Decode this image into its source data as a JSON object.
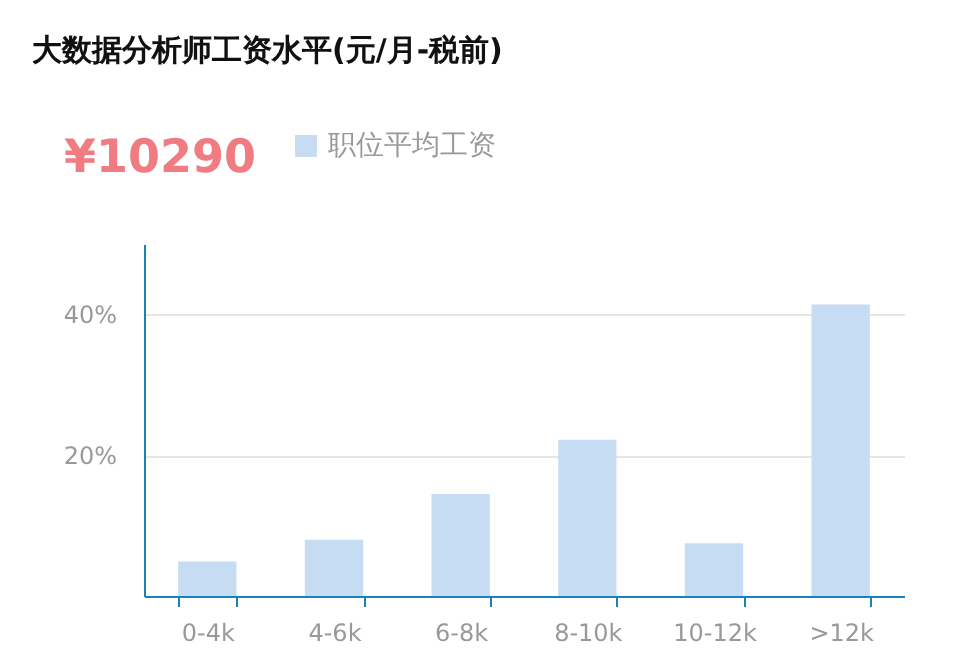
{
  "chart_data": {
    "type": "bar",
    "title": "大数据分析师工资水平(元/月-税前)",
    "annotations": [
      "¥10290"
    ],
    "categories": [
      "0-4k",
      "4-6k",
      "6-8k",
      "8-10k",
      "10-12k",
      ">12k"
    ],
    "series": [
      {
        "name": "职位平均工资",
        "color": "#c6dcf2",
        "values": [
          4.9,
          8.0,
          14.5,
          22.2,
          7.5,
          41.4
        ]
      }
    ],
    "ylim": [
      0,
      50
    ],
    "yticks": [
      {
        "value": 0,
        "label": null
      },
      {
        "value": 20,
        "label": "20%"
      },
      {
        "value": 40,
        "label": "40%"
      }
    ],
    "grid": "y",
    "legend": "top"
  }
}
